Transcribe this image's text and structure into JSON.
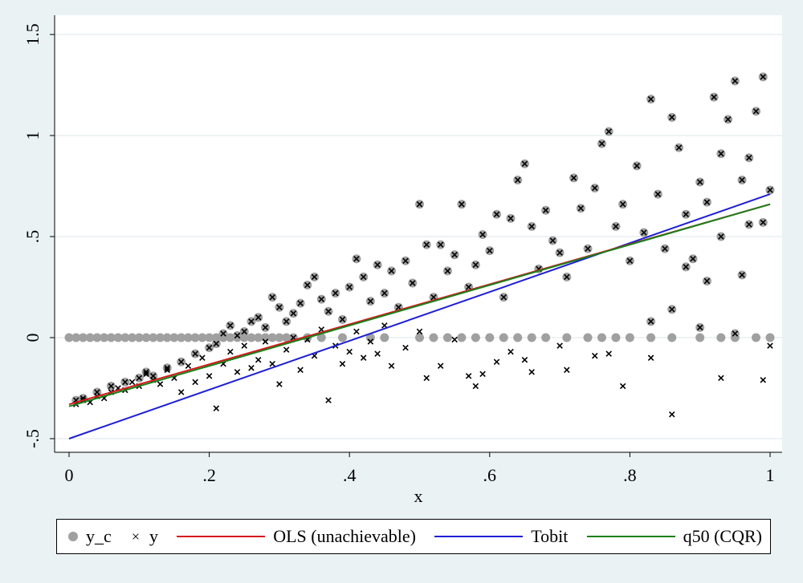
{
  "chart_data": {
    "type": "scatter",
    "title": "",
    "xlabel": "x",
    "ylabel": "",
    "xlim": [
      0,
      1
    ],
    "ylim": [
      -0.5,
      1.5
    ],
    "xticks": [
      0,
      0.2,
      0.4,
      0.6,
      0.8,
      1
    ],
    "xtick_labels": [
      "0",
      ".2",
      ".4",
      ".6",
      ".8",
      "1"
    ],
    "yticks": [
      -0.5,
      0,
      0.5,
      1,
      1.5
    ],
    "ytick_labels": [
      "-.5",
      "0",
      ".5",
      "1",
      "1.5"
    ],
    "grid": "horizontal",
    "legend_position": "bottom",
    "colors": {
      "background": "#eaf2f3",
      "plot_area": "#ffffff",
      "y_c": "#a0a0a0",
      "y": "#000000",
      "ols": "#d7191c",
      "tobit": "#1f1fd6",
      "q50": "#1a7f1a"
    },
    "series": [
      {
        "name": "y_c",
        "marker": "circle",
        "note_censoring": "y_c = max(y, 0)",
        "points": [
          [
            0.01,
            -0.31
          ],
          [
            0.02,
            -0.3
          ],
          [
            0.04,
            -0.27
          ],
          [
            0.06,
            -0.24
          ],
          [
            0.08,
            -0.22
          ],
          [
            0.1,
            -0.2
          ],
          [
            0.11,
            -0.17
          ],
          [
            0.12,
            -0.19
          ],
          [
            0.14,
            -0.15
          ],
          [
            0.16,
            -0.12
          ],
          [
            0.18,
            -0.08
          ],
          [
            0.2,
            -0.05
          ],
          [
            0.21,
            -0.03
          ],
          [
            0.22,
            0.02
          ],
          [
            0.23,
            0.06
          ],
          [
            0.24,
            0.01
          ],
          [
            0.25,
            0.03
          ],
          [
            0.26,
            0.08
          ],
          [
            0.27,
            0.1
          ],
          [
            0.28,
            0.05
          ],
          [
            0.29,
            0.2
          ],
          [
            0.3,
            0.15
          ],
          [
            0.31,
            0.08
          ],
          [
            0.32,
            0.12
          ],
          [
            0.33,
            0.17
          ],
          [
            0.34,
            0.26
          ],
          [
            0.35,
            0.3
          ],
          [
            0.36,
            0.19
          ],
          [
            0.37,
            0.13
          ],
          [
            0.38,
            0.22
          ],
          [
            0.39,
            0.09
          ],
          [
            0.4,
            0.25
          ],
          [
            0.41,
            0.39
          ],
          [
            0.42,
            0.3
          ],
          [
            0.43,
            0.18
          ],
          [
            0.44,
            0.36
          ],
          [
            0.45,
            0.22
          ],
          [
            0.46,
            0.33
          ],
          [
            0.47,
            0.15
          ],
          [
            0.48,
            0.38
          ],
          [
            0.49,
            0.27
          ],
          [
            0.5,
            0.66
          ],
          [
            0.51,
            0.46
          ],
          [
            0.52,
            0.2
          ],
          [
            0.53,
            0.46
          ],
          [
            0.54,
            0.33
          ],
          [
            0.55,
            0.41
          ],
          [
            0.56,
            0.66
          ],
          [
            0.57,
            0.25
          ],
          [
            0.58,
            0.36
          ],
          [
            0.59,
            0.51
          ],
          [
            0.6,
            0.43
          ],
          [
            0.61,
            0.61
          ],
          [
            0.62,
            0.2
          ],
          [
            0.63,
            0.59
          ],
          [
            0.64,
            0.78
          ],
          [
            0.65,
            0.86
          ],
          [
            0.66,
            0.55
          ],
          [
            0.67,
            0.34
          ],
          [
            0.68,
            0.63
          ],
          [
            0.69,
            0.48
          ],
          [
            0.7,
            0.42
          ],
          [
            0.71,
            0.3
          ],
          [
            0.72,
            0.79
          ],
          [
            0.73,
            0.64
          ],
          [
            0.74,
            0.44
          ],
          [
            0.75,
            0.74
          ],
          [
            0.76,
            0.96
          ],
          [
            0.77,
            1.02
          ],
          [
            0.78,
            0.55
          ],
          [
            0.79,
            0.66
          ],
          [
            0.8,
            0.38
          ],
          [
            0.81,
            0.85
          ],
          [
            0.82,
            0.52
          ],
          [
            0.83,
            1.18
          ],
          [
            0.84,
            0.71
          ],
          [
            0.85,
            0.44
          ],
          [
            0.86,
            1.09
          ],
          [
            0.87,
            0.94
          ],
          [
            0.88,
            0.61
          ],
          [
            0.89,
            0.39
          ],
          [
            0.9,
            0.77
          ],
          [
            0.91,
            0.67
          ],
          [
            0.92,
            1.19
          ],
          [
            0.93,
            0.5
          ],
          [
            0.94,
            1.08
          ],
          [
            0.95,
            1.27
          ],
          [
            0.96,
            0.78
          ],
          [
            0.97,
            0.56
          ],
          [
            0.98,
            1.12
          ],
          [
            0.99,
            1.29
          ],
          [
            1.0,
            0.73
          ],
          [
            0.93,
            0.91
          ],
          [
            0.97,
            0.89
          ],
          [
            0.9,
            0.05
          ],
          [
            0.95,
            0.02
          ],
          [
            0.83,
            0.08
          ],
          [
            0.86,
            0.14
          ],
          [
            0.88,
            0.35
          ],
          [
            0.99,
            0.57
          ],
          [
            0.96,
            0.31
          ],
          [
            0.91,
            0.28
          ]
        ],
        "zeros_x": [
          0.0,
          0.01,
          0.02,
          0.03,
          0.04,
          0.05,
          0.06,
          0.07,
          0.08,
          0.09,
          0.1,
          0.11,
          0.12,
          0.13,
          0.14,
          0.15,
          0.16,
          0.17,
          0.18,
          0.19,
          0.2,
          0.21,
          0.22,
          0.23,
          0.24,
          0.25,
          0.26,
          0.27,
          0.28,
          0.29,
          0.3,
          0.31,
          0.32,
          0.34,
          0.36,
          0.39,
          0.43,
          0.45,
          0.5,
          0.52,
          0.54,
          0.56,
          0.58,
          0.6,
          0.62,
          0.64,
          0.66,
          0.68,
          0.71,
          0.74,
          0.76,
          0.78,
          0.8,
          0.83,
          0.86,
          0.9,
          0.93,
          0.95,
          0.98,
          1.0
        ]
      },
      {
        "name": "y",
        "marker": "x",
        "points": [
          [
            0.01,
            -0.33
          ],
          [
            0.02,
            -0.31
          ],
          [
            0.03,
            -0.32
          ],
          [
            0.04,
            -0.29
          ],
          [
            0.05,
            -0.3
          ],
          [
            0.06,
            -0.27
          ],
          [
            0.07,
            -0.25
          ],
          [
            0.08,
            -0.26
          ],
          [
            0.09,
            -0.22
          ],
          [
            0.1,
            -0.24
          ],
          [
            0.11,
            -0.18
          ],
          [
            0.12,
            -0.21
          ],
          [
            0.13,
            -0.23
          ],
          [
            0.14,
            -0.16
          ],
          [
            0.15,
            -0.2
          ],
          [
            0.16,
            -0.27
          ],
          [
            0.17,
            -0.14
          ],
          [
            0.18,
            -0.22
          ],
          [
            0.19,
            -0.1
          ],
          [
            0.2,
            -0.19
          ],
          [
            0.21,
            -0.35
          ],
          [
            0.22,
            -0.13
          ],
          [
            0.23,
            -0.07
          ],
          [
            0.24,
            -0.17
          ],
          [
            0.25,
            -0.04
          ],
          [
            0.26,
            -0.15
          ],
          [
            0.27,
            -0.11
          ],
          [
            0.28,
            -0.02
          ],
          [
            0.29,
            -0.13
          ],
          [
            0.3,
            -0.23
          ],
          [
            0.31,
            -0.06
          ],
          [
            0.32,
            0.0
          ],
          [
            0.33,
            -0.16
          ],
          [
            0.34,
            -0.01
          ],
          [
            0.35,
            -0.09
          ],
          [
            0.36,
            0.04
          ],
          [
            0.37,
            -0.31
          ],
          [
            0.38,
            -0.04
          ],
          [
            0.39,
            -0.13
          ],
          [
            0.4,
            -0.07
          ],
          [
            0.41,
            0.03
          ],
          [
            0.42,
            -0.1
          ],
          [
            0.43,
            -0.02
          ],
          [
            0.44,
            -0.08
          ],
          [
            0.45,
            0.06
          ],
          [
            0.46,
            -0.14
          ],
          [
            0.48,
            -0.05
          ],
          [
            0.5,
            0.03
          ],
          [
            0.51,
            -0.2
          ],
          [
            0.53,
            -0.14
          ],
          [
            0.55,
            -0.01
          ],
          [
            0.57,
            -0.19
          ],
          [
            0.58,
            -0.24
          ],
          [
            0.59,
            -0.18
          ],
          [
            0.61,
            -0.12
          ],
          [
            0.63,
            -0.07
          ],
          [
            0.65,
            -0.11
          ],
          [
            0.66,
            -0.17
          ],
          [
            0.7,
            -0.04
          ],
          [
            0.71,
            -0.16
          ],
          [
            0.75,
            -0.09
          ],
          [
            0.77,
            -0.08
          ],
          [
            0.79,
            -0.24
          ],
          [
            0.83,
            -0.1
          ],
          [
            0.86,
            -0.38
          ],
          [
            0.93,
            -0.2
          ],
          [
            0.99,
            -0.21
          ],
          [
            1.0,
            -0.04
          ]
        ]
      },
      {
        "name": "OLS (unachievable)",
        "line": true,
        "x": [
          0,
          1
        ],
        "y": [
          -0.33,
          0.66
        ]
      },
      {
        "name": "Tobit",
        "line": true,
        "x": [
          0,
          1
        ],
        "y": [
          -0.5,
          0.71
        ]
      },
      {
        "name": "q50 (CQR)",
        "line": true,
        "x": [
          0,
          1
        ],
        "y": [
          -0.34,
          0.66
        ]
      }
    ]
  },
  "legend": {
    "items": [
      "y_c",
      "y",
      "OLS (unachievable)",
      "Tobit",
      "q50 (CQR)"
    ]
  }
}
